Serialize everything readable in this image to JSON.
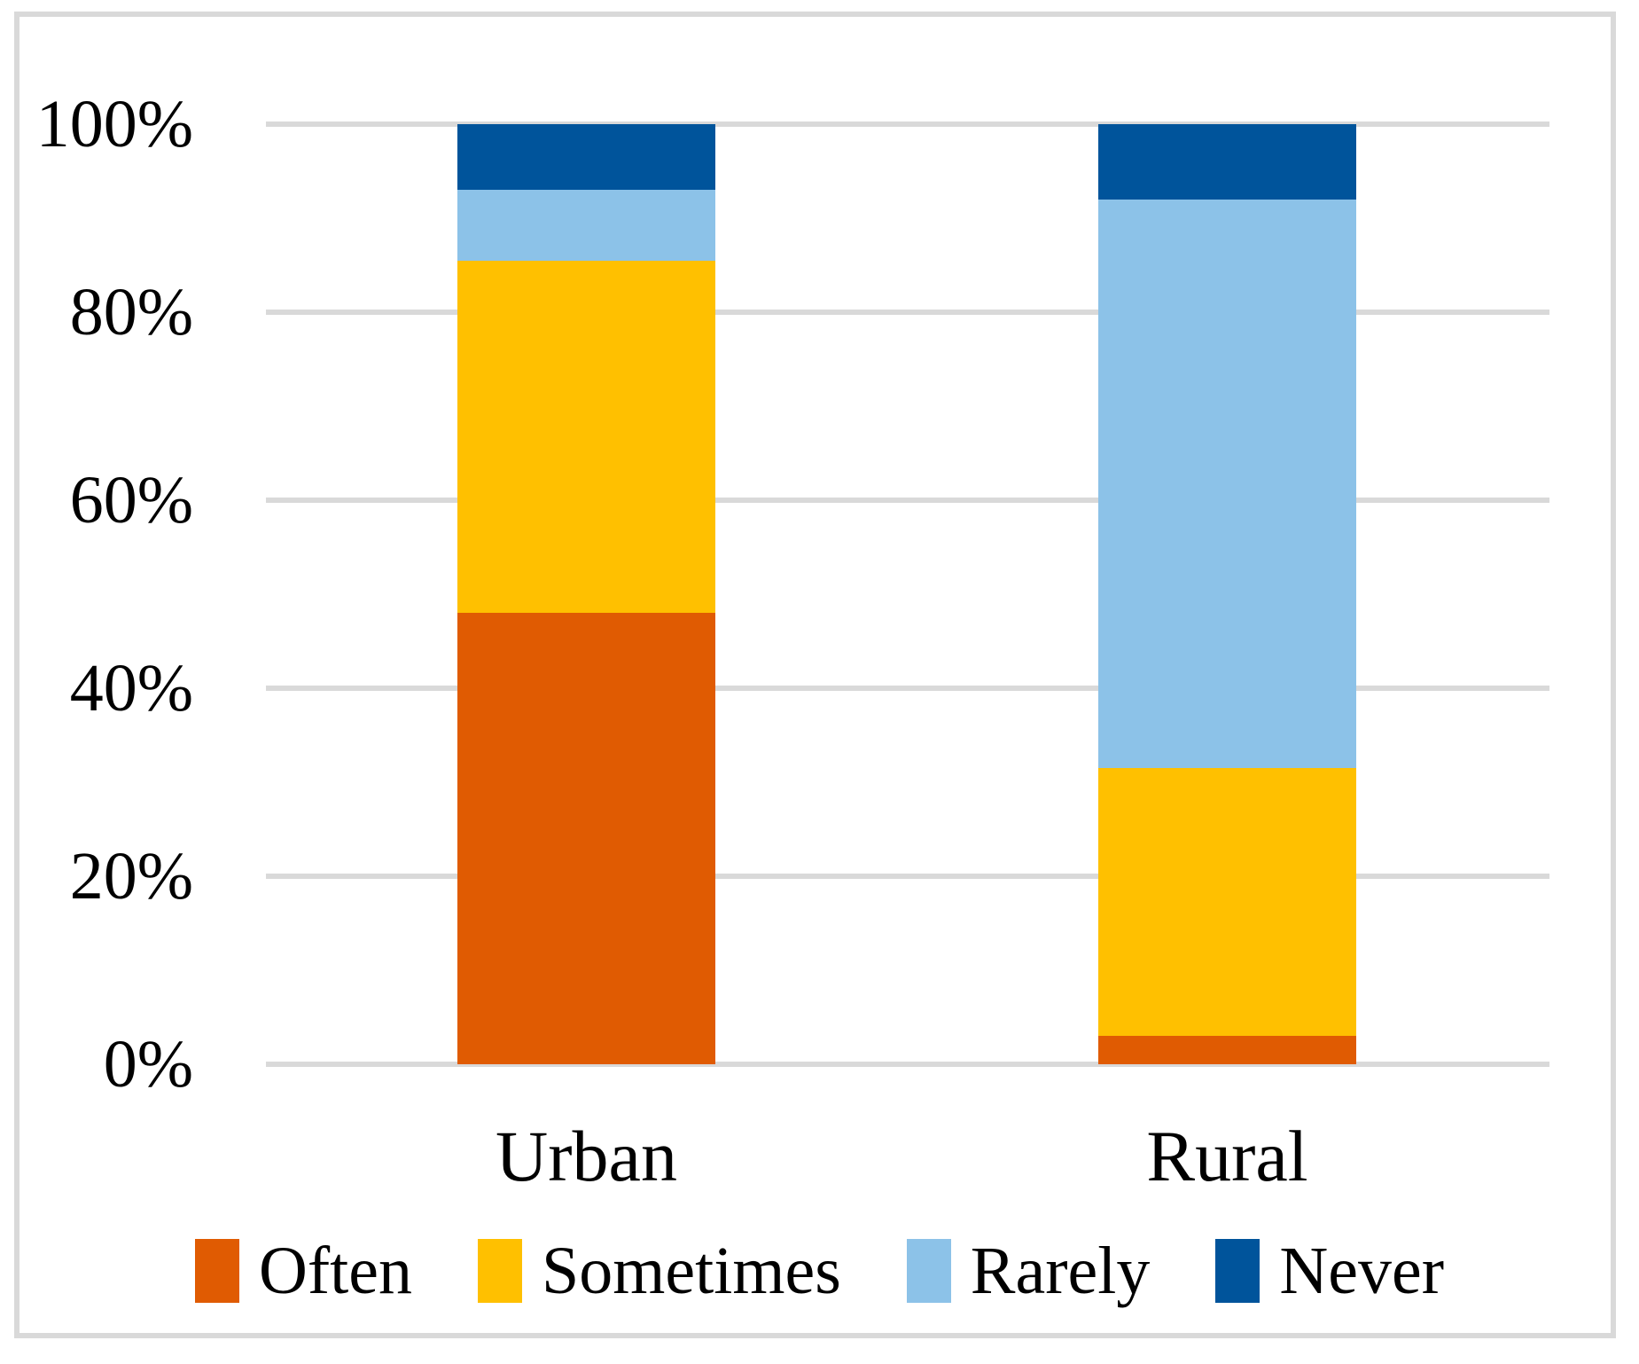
{
  "chart_data": {
    "type": "bar",
    "subtype": "stacked-100-percent-column",
    "categories": [
      "Urban",
      "Rural"
    ],
    "series": [
      {
        "name": "Often",
        "color": "#E05B02",
        "values": [
          48.0,
          3.0
        ]
      },
      {
        "name": "Sometimes",
        "color": "#FFC000",
        "values": [
          37.5,
          28.5
        ]
      },
      {
        "name": "Rarely",
        "color": "#8CC2E8",
        "values": [
          7.5,
          60.5
        ]
      },
      {
        "name": "Never",
        "color": "#00549B",
        "values": [
          7.0,
          8.0
        ]
      }
    ],
    "yticks": [
      "0%",
      "20%",
      "40%",
      "60%",
      "80%",
      "100%"
    ],
    "ytick_values": [
      0,
      20,
      40,
      60,
      80,
      100
    ],
    "ylim": [
      0,
      100
    ],
    "xlabel": "",
    "ylabel": "",
    "grid": "horizontal",
    "gridline_color": "#D9D9D9",
    "frame_color": "#D9D9D9",
    "text_color": "#000000",
    "background_color": "#FFFFFF",
    "legend_position": "bottom",
    "legend_labels": [
      "Often",
      "Sometimes",
      "Rarely",
      "Never"
    ],
    "values_unit": "percent"
  }
}
